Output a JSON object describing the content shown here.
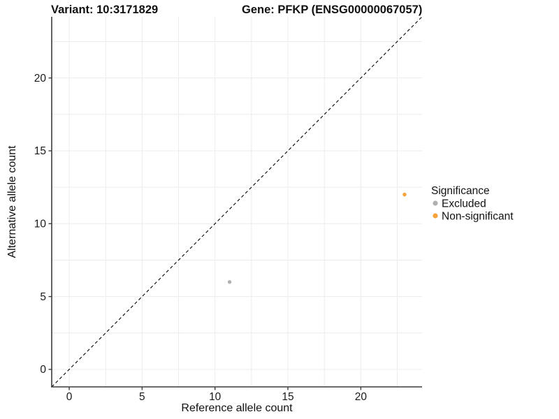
{
  "figure": {
    "title_left": "Variant: 10:3171829",
    "title_right": "Gene: PFKP (ENSG00000067057)"
  },
  "chart_data": {
    "type": "scatter",
    "title": "Variant: 10:3171829   Gene: PFKP (ENSG00000067057)",
    "xlabel": "Reference allele count",
    "ylabel": "Alternative allele count",
    "xlim": [
      -1.2,
      24.2
    ],
    "ylim": [
      -1.2,
      24.2
    ],
    "xticks": [
      0,
      5,
      10,
      15,
      20
    ],
    "yticks": [
      0,
      5,
      10,
      15,
      20
    ],
    "grid": {
      "step": 2.5,
      "color": "#ECECEC",
      "on": true
    },
    "identity_line": {
      "slope": 1,
      "intercept": 0,
      "style": "dashed",
      "color": "#000000"
    },
    "series": [
      {
        "name": "Excluded",
        "color": "#B0B0B0",
        "points": [
          {
            "x": 11,
            "y": 6
          }
        ]
      },
      {
        "name": "Non-significant",
        "color": "#F8A33A",
        "points": [
          {
            "x": 23,
            "y": 12
          }
        ]
      }
    ],
    "legend": {
      "title": "Significance",
      "position": "right"
    },
    "axis_color": "#3C3C3C",
    "background": "#FFFFFF"
  }
}
